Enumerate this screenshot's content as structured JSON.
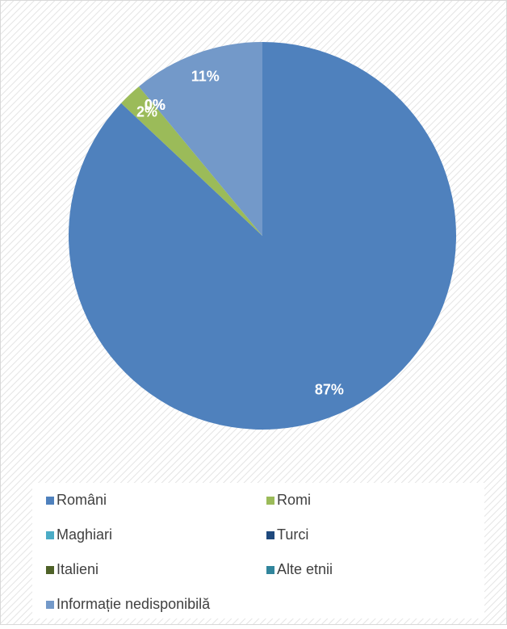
{
  "chart_data": {
    "type": "pie",
    "categories": [
      "Români",
      "Romi",
      "Maghiari",
      "Turci",
      "Italieni",
      "Alte etnii",
      "Informație nedisponibilă"
    ],
    "values": [
      87,
      2,
      0,
      0,
      0,
      0,
      11
    ],
    "value_labels": [
      "87%",
      "2%",
      "0%",
      "0%",
      "0%",
      "0%",
      "11%"
    ],
    "colors": [
      "#4f81bd",
      "#9bbb59",
      "#4bacc6",
      "#1f497d",
      "#4f6228",
      "#31859c",
      "#7399c9"
    ],
    "legend": "bottom"
  }
}
